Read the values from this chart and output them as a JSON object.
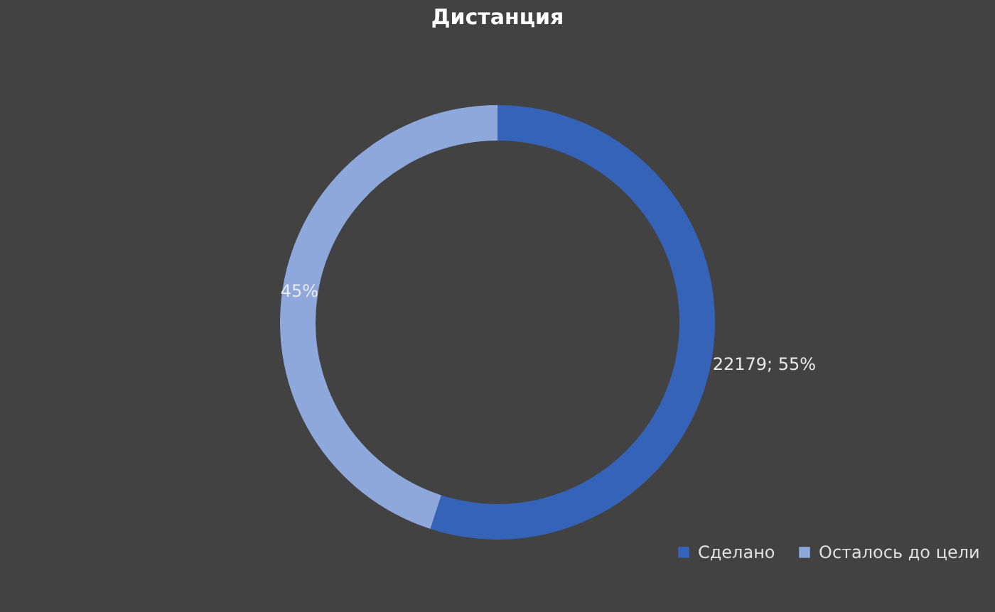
{
  "chart_data": {
    "type": "donut",
    "title": "Дистанция",
    "categories": [
      "Сделано",
      "Осталось до цели"
    ],
    "values": [
      55,
      45
    ],
    "colors": [
      "#3563b8",
      "#8fa8dc"
    ],
    "value_labels": [
      "22179; 55%",
      "45%"
    ],
    "legend": "bottom right"
  }
}
